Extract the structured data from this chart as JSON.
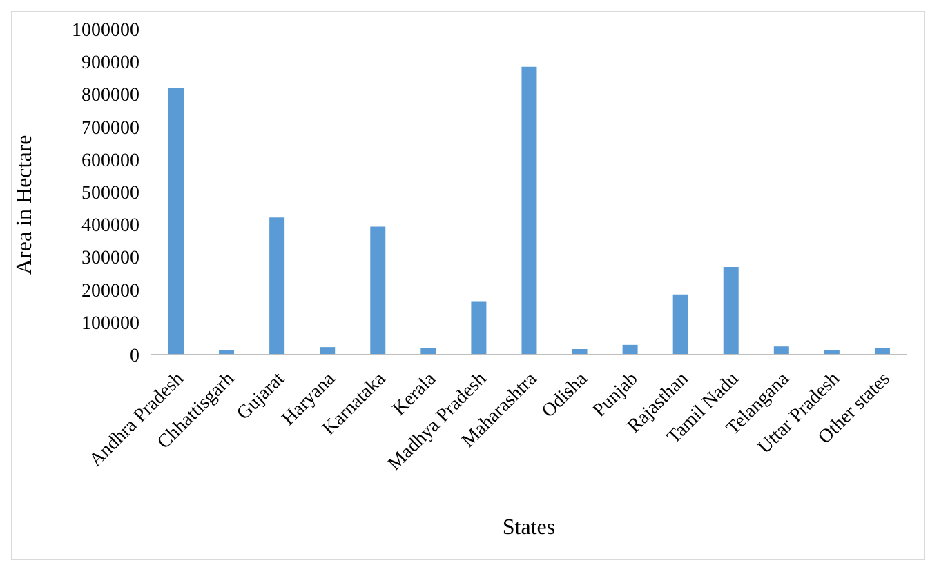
{
  "chart_data": {
    "type": "bar",
    "xlabel": "States",
    "ylabel": "Area in Hectare",
    "categories": [
      "Andhra Pradesh",
      "Chhattisgarh",
      "Gujarat",
      "Haryana",
      "Karnataka",
      "Kerala",
      "Madhya Pradesh",
      "Maharashtra",
      "Odisha",
      "Punjab",
      "Rajasthan",
      "Tamil Nadu",
      "Telangana",
      "Uttar Pradesh",
      "Other states"
    ],
    "values": [
      820000,
      14000,
      421000,
      23000,
      393000,
      20000,
      162000,
      884000,
      17000,
      30000,
      185000,
      269000,
      25000,
      14000,
      21000
    ],
    "color": "#5b9bd5",
    "ylim": [
      0,
      1000000
    ],
    "yticks": [
      0,
      100000,
      200000,
      300000,
      400000,
      500000,
      600000,
      700000,
      800000,
      900000,
      1000000
    ],
    "grid": false,
    "legend": false
  }
}
